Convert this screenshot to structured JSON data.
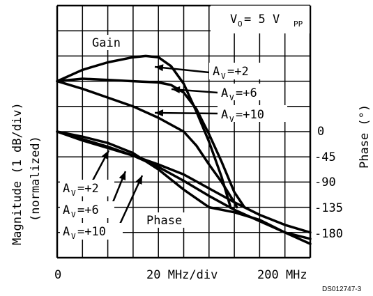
{
  "chart_data": {
    "type": "line",
    "title": "",
    "annotation": {
      "main": "V",
      "sub": "O",
      "eq": " = 5 V",
      "unit_sub": "PP"
    },
    "ylabel_left_line1": "Magnitude (1 dB/div)",
    "ylabel_left_line2": "(normalized)",
    "ylabel_right": "Phase (°)",
    "x_ticks": {
      "left": "0",
      "mid": "20 MHz/div",
      "right": "200 MHz"
    },
    "phase_ticks": [
      "0",
      "-45",
      "-90",
      "-135",
      "-180"
    ],
    "gain_label": "Gain",
    "phase_label": "Phase",
    "legend_gain": [
      "A",
      "A",
      "A"
    ],
    "legend_gain_values": [
      "=+2",
      "=+6",
      "=+10"
    ],
    "legend_phase": [
      "A",
      "A",
      "A"
    ],
    "legend_phase_values": [
      "=+2",
      "=+6",
      "=+10"
    ],
    "legend_sub": "V",
    "footer_code": "DS012747-3",
    "grid": true,
    "x_range_div": [
      0,
      10
    ],
    "series": [
      {
        "group": "gain",
        "points": [
          [
            0,
            3.0
          ],
          [
            1,
            2.55
          ],
          [
            2,
            2.25
          ],
          [
            3,
            2.05
          ],
          [
            3.5,
            2.0
          ],
          [
            4,
            2.05
          ],
          [
            4.5,
            2.4
          ],
          [
            5,
            3.1
          ],
          [
            5.5,
            4.2
          ],
          [
            6,
            5.4
          ],
          [
            6.5,
            6.8
          ],
          [
            6.85,
            8.0
          ]
        ]
      },
      {
        "group": "gain",
        "points": [
          [
            0,
            3.0
          ],
          [
            1,
            2.9
          ],
          [
            2,
            2.95
          ],
          [
            3,
            3.0
          ],
          [
            4,
            3.05
          ],
          [
            4.5,
            3.15
          ],
          [
            5,
            3.45
          ],
          [
            5.5,
            4.1
          ],
          [
            6,
            5.1
          ],
          [
            6.5,
            6.2
          ],
          [
            7,
            7.4
          ],
          [
            7.4,
            8.0
          ]
        ]
      },
      {
        "group": "gain",
        "points": [
          [
            0,
            3.0
          ],
          [
            1,
            3.3
          ],
          [
            2,
            3.65
          ],
          [
            3,
            4.0
          ],
          [
            4,
            4.45
          ],
          [
            5,
            5.0
          ],
          [
            5.5,
            5.55
          ],
          [
            6,
            6.3
          ],
          [
            6.5,
            7.0
          ],
          [
            7,
            7.8
          ],
          [
            7.1,
            8.0
          ]
        ]
      },
      {
        "group": "phase",
        "points": [
          [
            0,
            5.0
          ],
          [
            1,
            5.2
          ],
          [
            2,
            5.45
          ],
          [
            3,
            5.85
          ],
          [
            4,
            6.5
          ],
          [
            5,
            7.3
          ],
          [
            6,
            8.0
          ],
          [
            7,
            8.2
          ],
          [
            8,
            8.5
          ],
          [
            9,
            9.0
          ],
          [
            10,
            9.45
          ]
        ]
      },
      {
        "group": "phase",
        "points": [
          [
            0,
            5.0
          ],
          [
            1,
            5.3
          ],
          [
            2,
            5.6
          ],
          [
            3,
            5.95
          ],
          [
            4,
            6.4
          ],
          [
            5,
            6.95
          ],
          [
            6,
            7.55
          ],
          [
            7,
            8.1
          ],
          [
            8,
            8.55
          ],
          [
            9,
            9.0
          ],
          [
            10,
            9.25
          ]
        ]
      },
      {
        "group": "phase",
        "points": [
          [
            0,
            5.0
          ],
          [
            1,
            5.35
          ],
          [
            2,
            5.65
          ],
          [
            3,
            5.95
          ],
          [
            4,
            6.3
          ],
          [
            5,
            6.7
          ],
          [
            6,
            7.25
          ],
          [
            7,
            7.8
          ],
          [
            8,
            8.3
          ],
          [
            9,
            8.7
          ],
          [
            10,
            9.0
          ]
        ]
      }
    ]
  }
}
